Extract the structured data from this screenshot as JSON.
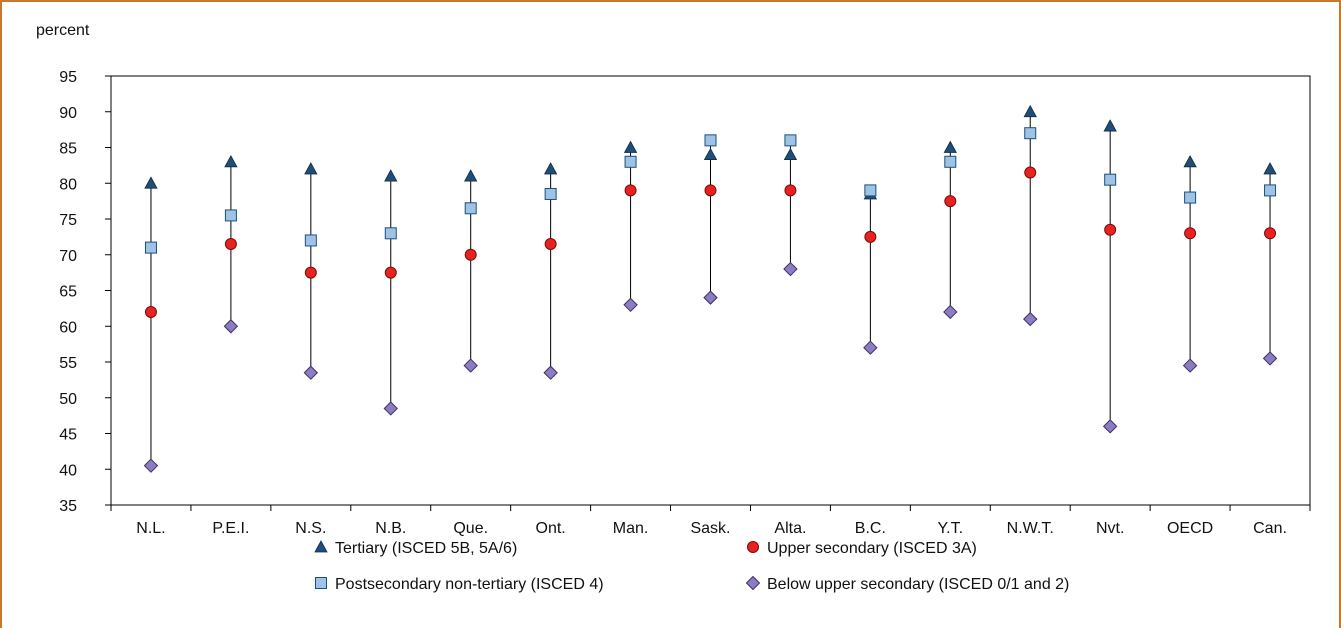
{
  "chart_data": {
    "type": "scatter",
    "ylabel": "percent",
    "ylim": [
      35,
      95
    ],
    "yticks": [
      35,
      40,
      45,
      50,
      55,
      60,
      65,
      70,
      75,
      80,
      85,
      90,
      95
    ],
    "categories": [
      "N.L.",
      "P.E.I.",
      "N.S.",
      "N.B.",
      "Que.",
      "Ont.",
      "Man.",
      "Sask.",
      "Alta.",
      "B.C.",
      "Y.T.",
      "N.W.T.",
      "Nvt.",
      "OECD",
      "Can."
    ],
    "grid": false,
    "legend_position": "bottom",
    "series": [
      {
        "name": "Tertiary (ISCED 5B, 5A/6)",
        "marker": "triangle",
        "color": "#1f4e79",
        "values": [
          80,
          83,
          82,
          81,
          81,
          82,
          85,
          84,
          84,
          78.5,
          85,
          90,
          88,
          83,
          82
        ]
      },
      {
        "name": "Postsecondary non-tertiary (ISCED 4)",
        "marker": "square",
        "color": "#9dc3e6",
        "values": [
          71,
          75.5,
          72,
          73,
          76.5,
          78.5,
          83,
          86,
          86,
          79,
          83,
          87,
          80.5,
          78,
          79
        ]
      },
      {
        "name": "Upper secondary (ISCED 3A)",
        "marker": "circle",
        "color": "#e8231f",
        "values": [
          62,
          71.5,
          67.5,
          67.5,
          70,
          71.5,
          79,
          79,
          79,
          72.5,
          77.5,
          81.5,
          73.5,
          73,
          73
        ]
      },
      {
        "name": "Below upper secondary (ISCED 0/1 and 2)",
        "marker": "diamond",
        "color": "#8e7cc3",
        "values": [
          40.5,
          60,
          53.5,
          48.5,
          54.5,
          53.5,
          63,
          64,
          68,
          57,
          62,
          61,
          46,
          54.5,
          55.5
        ]
      }
    ]
  }
}
